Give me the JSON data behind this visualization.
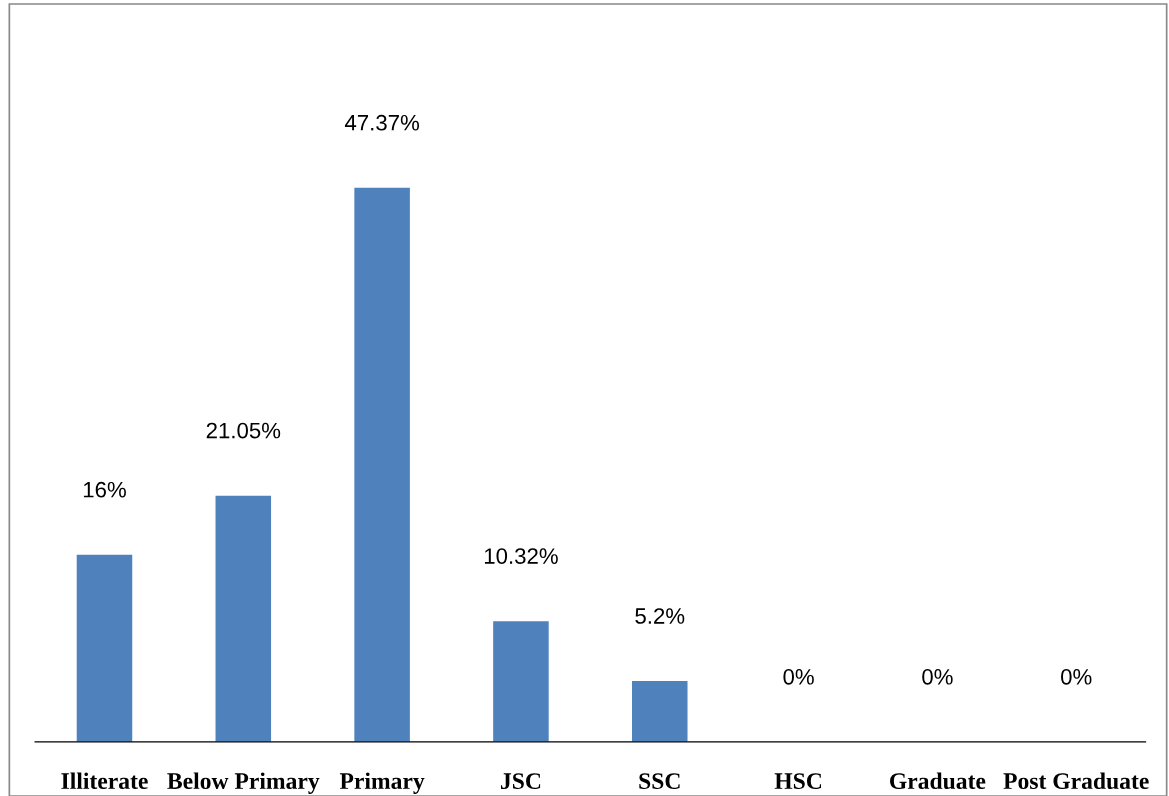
{
  "chart_data": {
    "type": "bar",
    "categories": [
      "Illiterate",
      "Below Primary",
      "Primary",
      "JSC",
      "SSC",
      "HSC",
      "Graduate",
      "Post Graduate"
    ],
    "values": [
      16,
      21.05,
      47.37,
      10.32,
      5.2,
      0,
      0,
      0
    ],
    "value_labels": [
      "16%",
      "21.05%",
      "47.37%",
      "10.32%",
      "5.2%",
      "0%",
      "0%",
      "0%"
    ],
    "color": "#4f81bd",
    "grid": false,
    "legend": false
  }
}
